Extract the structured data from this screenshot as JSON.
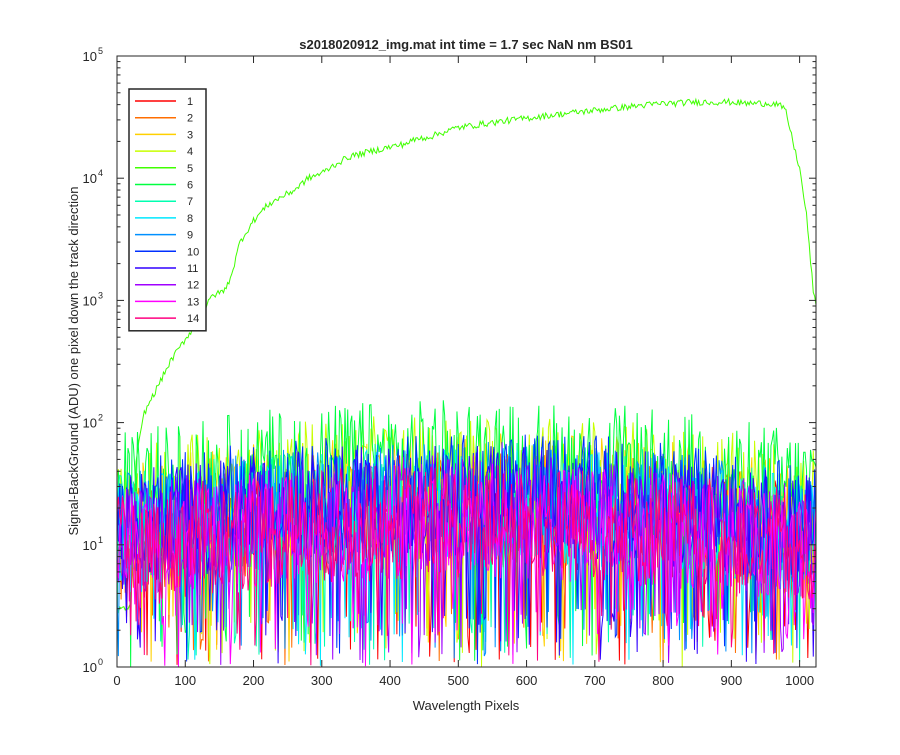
{
  "chart_data": {
    "type": "line",
    "title": "s2018020912_img.mat int time = 1.7 sec  NaN nm BS01",
    "xlabel": "Wavelength Pixels",
    "ylabel": "Signal-BackGround (ADU) one pixel down the track direction",
    "xlim": [
      0,
      1024
    ],
    "ylim": [
      1,
      100000
    ],
    "yscale": "log",
    "x_ticks": [
      0,
      100,
      200,
      300,
      400,
      500,
      600,
      700,
      800,
      900,
      1000
    ],
    "y_ticks": [
      {
        "base": "10",
        "exp": "0",
        "value": 1
      },
      {
        "base": "10",
        "exp": "1",
        "value": 10
      },
      {
        "base": "10",
        "exp": "2",
        "value": 100
      },
      {
        "base": "10",
        "exp": "3",
        "value": 1000
      },
      {
        "base": "10",
        "exp": "4",
        "value": 10000
      },
      {
        "base": "10",
        "exp": "5",
        "value": 100000
      }
    ],
    "grid": false,
    "legend_position": "top-left",
    "series": [
      {
        "name": "1",
        "color": "#ff0000",
        "kind": "noise",
        "level": 14
      },
      {
        "name": "2",
        "color": "#ff6e00",
        "kind": "noise",
        "level": 15
      },
      {
        "name": "3",
        "color": "#ffd000",
        "kind": "noise",
        "level": 22
      },
      {
        "name": "4",
        "color": "#c8ff00",
        "kind": "noise",
        "level": 30
      },
      {
        "name": "5",
        "color": "#40ff00",
        "kind": "signal",
        "points": [
          [
            20,
            3
          ],
          [
            28,
            50
          ],
          [
            40,
            120
          ],
          [
            60,
            200
          ],
          [
            80,
            330
          ],
          [
            100,
            480
          ],
          [
            120,
            700
          ],
          [
            140,
            1100
          ],
          [
            150,
            1150
          ],
          [
            160,
            1250
          ],
          [
            170,
            1800
          ],
          [
            180,
            3000
          ],
          [
            200,
            4500
          ],
          [
            220,
            6000
          ],
          [
            240,
            7000
          ],
          [
            260,
            8000
          ],
          [
            280,
            10000
          ],
          [
            300,
            11000
          ],
          [
            320,
            13000
          ],
          [
            340,
            15000
          ],
          [
            360,
            16000
          ],
          [
            380,
            17000
          ],
          [
            400,
            18000
          ],
          [
            420,
            19000
          ],
          [
            440,
            21000
          ],
          [
            460,
            22000
          ],
          [
            480,
            24000
          ],
          [
            500,
            26000
          ],
          [
            520,
            27000
          ],
          [
            540,
            28000
          ],
          [
            560,
            29000
          ],
          [
            580,
            30000
          ],
          [
            600,
            31000
          ],
          [
            620,
            32000
          ],
          [
            640,
            33000
          ],
          [
            660,
            34000
          ],
          [
            680,
            35000
          ],
          [
            700,
            36000
          ],
          [
            720,
            37000
          ],
          [
            740,
            38000
          ],
          [
            760,
            39000
          ],
          [
            780,
            40000
          ],
          [
            800,
            41000
          ],
          [
            820,
            41000
          ],
          [
            840,
            42000
          ],
          [
            860,
            42000
          ],
          [
            880,
            42000
          ],
          [
            900,
            42000
          ],
          [
            920,
            41000
          ],
          [
            940,
            41000
          ],
          [
            960,
            41000
          ],
          [
            970,
            40000
          ],
          [
            980,
            35000
          ],
          [
            990,
            20000
          ],
          [
            1000,
            12000
          ],
          [
            1010,
            5000
          ],
          [
            1020,
            1200
          ],
          [
            1024,
            900
          ]
        ]
      },
      {
        "name": "6",
        "color": "#00ff40",
        "kind": "noise",
        "level": 40
      },
      {
        "name": "7",
        "color": "#00ffb0",
        "kind": "noise",
        "level": 18
      },
      {
        "name": "8",
        "color": "#00e8ff",
        "kind": "noise",
        "level": 16
      },
      {
        "name": "9",
        "color": "#0090ff",
        "kind": "noise",
        "level": 18
      },
      {
        "name": "10",
        "color": "#0030ff",
        "kind": "noise",
        "level": 22
      },
      {
        "name": "11",
        "color": "#3000ff",
        "kind": "noise",
        "level": 18
      },
      {
        "name": "12",
        "color": "#a000ff",
        "kind": "noise",
        "level": 14
      },
      {
        "name": "13",
        "color": "#ff00ff",
        "kind": "noise",
        "level": 12
      },
      {
        "name": "14",
        "color": "#ff0080",
        "kind": "noise",
        "level": 12
      }
    ]
  }
}
